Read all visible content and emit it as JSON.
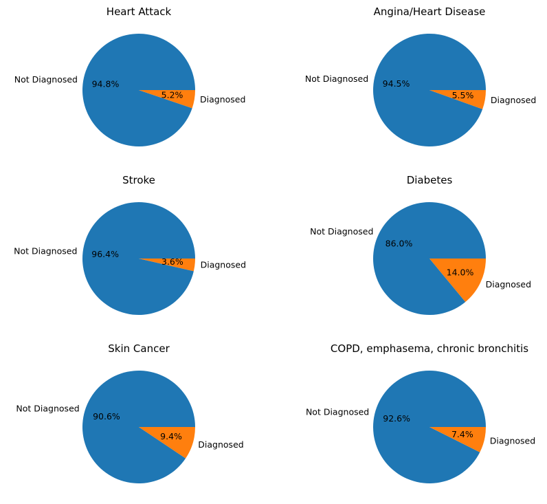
{
  "chart_data": [
    {
      "type": "pie",
      "title": "Heart Attack",
      "labels": [
        "Not Diagnosed",
        "Diagnosed"
      ],
      "values": [
        94.8,
        5.2
      ],
      "value_labels": [
        "94.8%",
        "5.2%"
      ],
      "colors": [
        "#1f77b4",
        "#ff7f0e"
      ]
    },
    {
      "type": "pie",
      "title": "Angina/Heart Disease",
      "labels": [
        "Not Diagnosed",
        "Diagnosed"
      ],
      "values": [
        94.5,
        5.5
      ],
      "value_labels": [
        "94.5%",
        "5.5%"
      ],
      "colors": [
        "#1f77b4",
        "#ff7f0e"
      ]
    },
    {
      "type": "pie",
      "title": "Stroke",
      "labels": [
        "Not Diagnosed",
        "Diagnosed"
      ],
      "values": [
        96.4,
        3.6
      ],
      "value_labels": [
        "96.4%",
        "3.6%"
      ],
      "colors": [
        "#1f77b4",
        "#ff7f0e"
      ]
    },
    {
      "type": "pie",
      "title": "Diabetes",
      "labels": [
        "Not Diagnosed",
        "Diagnosed"
      ],
      "values": [
        86.0,
        14.0
      ],
      "value_labels": [
        "86.0%",
        "14.0%"
      ],
      "colors": [
        "#1f77b4",
        "#ff7f0e"
      ]
    },
    {
      "type": "pie",
      "title": "Skin Cancer",
      "labels": [
        "Not Diagnosed",
        "Diagnosed"
      ],
      "values": [
        90.6,
        9.4
      ],
      "value_labels": [
        "90.6%",
        "9.4%"
      ],
      "colors": [
        "#1f77b4",
        "#ff7f0e"
      ]
    },
    {
      "type": "pie",
      "title": "COPD, emphasema, chronic bronchitis",
      "labels": [
        "Not Diagnosed",
        "Diagnosed"
      ],
      "values": [
        92.6,
        7.4
      ],
      "value_labels": [
        "92.6%",
        "7.4%"
      ],
      "colors": [
        "#1f77b4",
        "#ff7f0e"
      ]
    }
  ]
}
